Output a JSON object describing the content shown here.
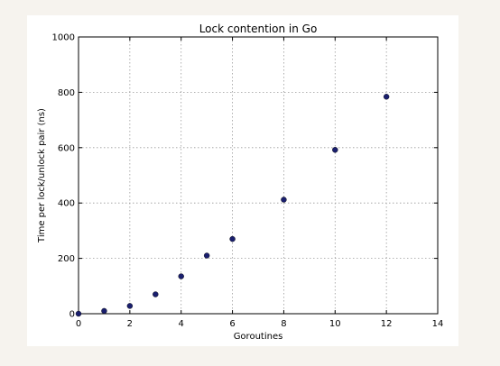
{
  "chart_data": {
    "type": "scatter",
    "title": "Lock contention in Go",
    "xlabel": "Goroutines",
    "ylabel": "Time per lock/unlock pair (ns)",
    "xlim": [
      0,
      14
    ],
    "ylim": [
      0,
      1000
    ],
    "xticks": [
      "0",
      "2",
      "4",
      "6",
      "8",
      "10",
      "12",
      "14"
    ],
    "yticks": [
      "0",
      "200",
      "400",
      "600",
      "800",
      "1000"
    ],
    "grid": true,
    "marker_color": "#1a1f6e",
    "series": [
      {
        "x": [
          0,
          1,
          2,
          3,
          4,
          5,
          6,
          8,
          10,
          12
        ],
        "y": [
          0,
          10,
          28,
          70,
          135,
          210,
          270,
          412,
          592,
          784
        ]
      }
    ]
  }
}
